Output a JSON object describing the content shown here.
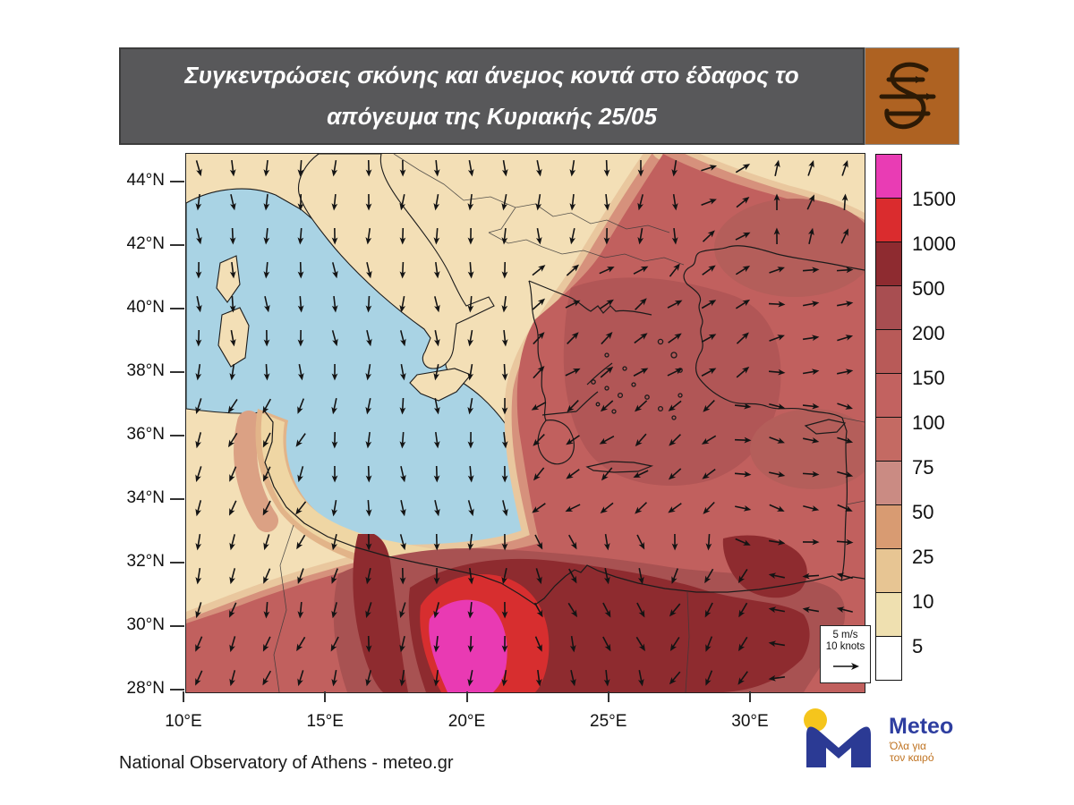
{
  "header": {
    "title_line1": "Συγκεντρώσεις σκόνης και άνεμος κοντά στο έδαφος το",
    "title_line2": "απόγευμα της Κυριακής 25/05"
  },
  "axes": {
    "lat_labels": [
      "44°N",
      "42°N",
      "40°N",
      "38°N",
      "36°N",
      "34°N",
      "32°N",
      "30°N",
      "28°N"
    ],
    "lon_labels": [
      "10°E",
      "15°E",
      "20°E",
      "25°E",
      "30°E"
    ]
  },
  "colorbar": {
    "labels": [
      "1500",
      "1000",
      "500",
      "200",
      "150",
      "100",
      "75",
      "50",
      "25",
      "10",
      "5"
    ],
    "colors": [
      "#e93cb4",
      "#da2c2e",
      "#8e2b30",
      "#a84e51",
      "#b85a58",
      "#c26260",
      "#c46a63",
      "#ca8b83",
      "#d89b72",
      "#e7c593",
      "#efe0b0",
      "#ffffff"
    ]
  },
  "wind_legend": {
    "line1": "5 m/s",
    "line2": "10 knots"
  },
  "footer": {
    "attribution": "National Observatory of Athens - meteo.gr"
  },
  "brand": {
    "name": "Meteo",
    "tagline1": "Όλα για",
    "tagline2": "τον καιρό"
  },
  "map_colors": {
    "sea": "#a9d3e4",
    "land": "#f3dfb6",
    "arrow": "#141414"
  }
}
